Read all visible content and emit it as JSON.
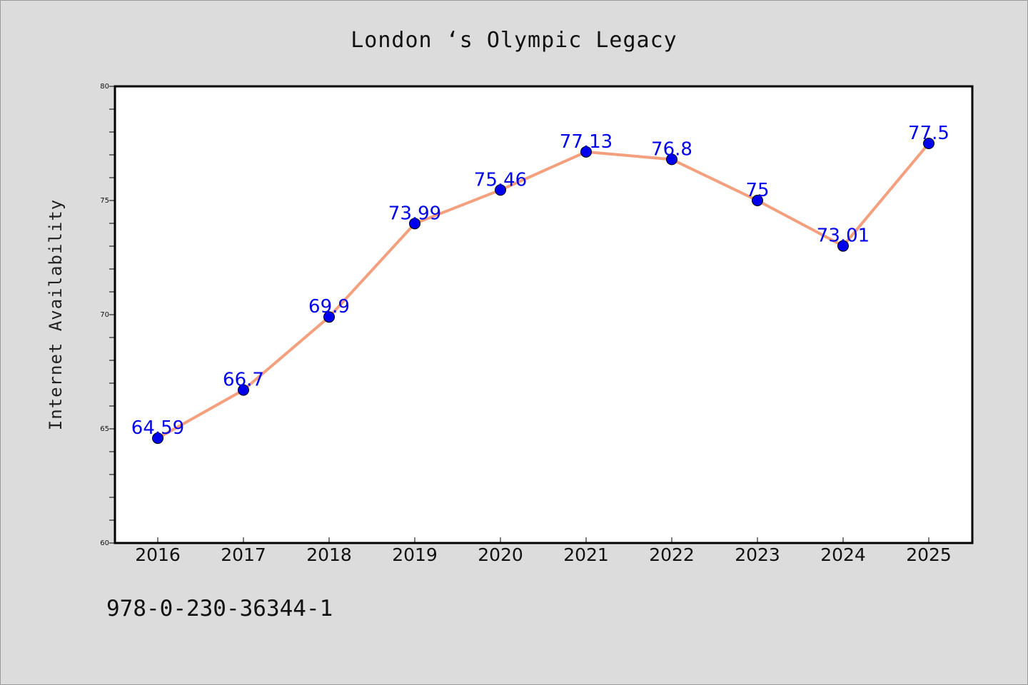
{
  "chart_data": {
    "type": "line",
    "title": "London ‘s Olympic Legacy",
    "xlabel": "",
    "ylabel": "Internet Availability",
    "x": [
      "2016",
      "2017",
      "2018",
      "2019",
      "2020",
      "2021",
      "2022",
      "2023",
      "2024",
      "2025"
    ],
    "series": [
      {
        "values": [
          64.59,
          66.7,
          69.9,
          73.99,
          75.46,
          77.13,
          76.8,
          75,
          73.01,
          77.5
        ],
        "labels": [
          "64.59",
          "66.7",
          "69.9",
          "73.99",
          "75.46",
          "77.13",
          "76.8",
          "75",
          "73.01",
          "77.5"
        ]
      }
    ],
    "ylim": [
      60,
      80
    ],
    "yticks": [
      "60",
      "65",
      "70",
      "75",
      "80"
    ],
    "grid": false,
    "line_color": "#f4a07e",
    "marker_color": "#0000ee",
    "label_color": "#0000ee",
    "plot_background": "#ffffff",
    "page_background": "#dcdcdc"
  },
  "footer": {
    "code": "978-0-230-36344-1"
  }
}
